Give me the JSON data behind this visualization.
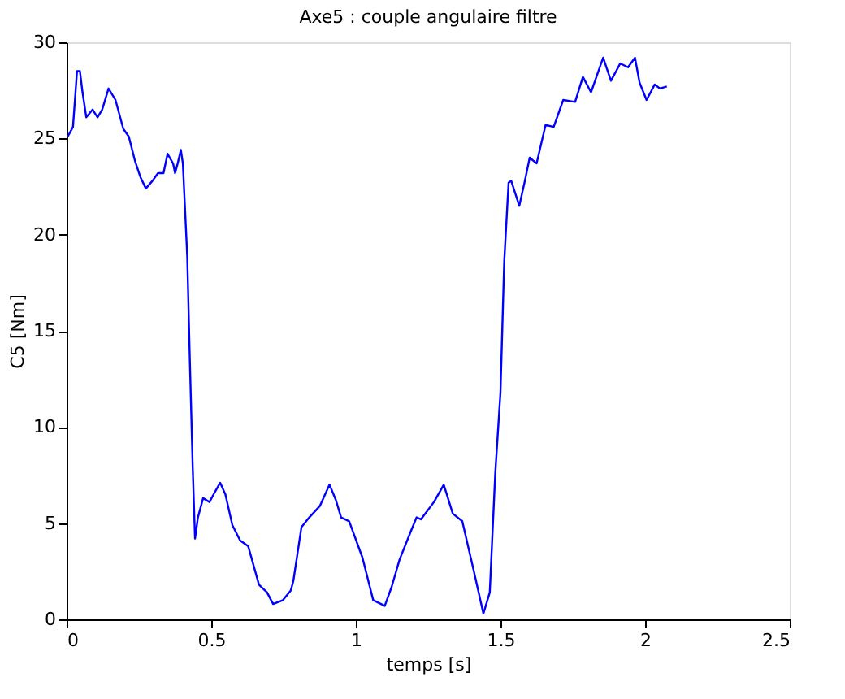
{
  "chart_data": {
    "type": "line",
    "title": "Axe5 : couple angulaire filtre",
    "xlabel": "temps [s]",
    "ylabel": "C5 [Nm]",
    "xlim": [
      0,
      2.5
    ],
    "xticks": [
      0,
      0.5,
      1,
      1.5,
      2,
      2.5
    ],
    "ylim": [
      0,
      30
    ],
    "yticks": [
      0,
      5,
      10,
      15,
      20,
      25,
      30
    ],
    "grid": false,
    "marker": "none",
    "line_style": "solid",
    "x": [
      0.004,
      0.022,
      0.036,
      0.046,
      0.055,
      0.068,
      0.09,
      0.107,
      0.123,
      0.145,
      0.169,
      0.196,
      0.215,
      0.237,
      0.255,
      0.274,
      0.297,
      0.316,
      0.335,
      0.349,
      0.368,
      0.375,
      0.384,
      0.395,
      0.402,
      0.417,
      0.426,
      0.436,
      0.444,
      0.454,
      0.472,
      0.494,
      0.512,
      0.531,
      0.549,
      0.573,
      0.6,
      0.628,
      0.665,
      0.693,
      0.714,
      0.748,
      0.775,
      0.784,
      0.812,
      0.839,
      0.876,
      0.909,
      0.931,
      0.949,
      0.977,
      1.023,
      1.06,
      1.1,
      1.124,
      1.151,
      1.188,
      1.21,
      1.225,
      1.27,
      1.304,
      1.335,
      1.368,
      1.408,
      1.441,
      1.463,
      1.482,
      1.5,
      1.513,
      1.528,
      1.537,
      1.565,
      1.583,
      1.601,
      1.625,
      1.656,
      1.684,
      1.717,
      1.758,
      1.785,
      1.813,
      1.855,
      1.882,
      1.914,
      1.941,
      1.965,
      1.981,
      2.005,
      2.033,
      2.051,
      2.075
    ],
    "series": [
      {
        "color": "#0000ff",
        "values": [
          25.1,
          25.6,
          28.5,
          28.5,
          27.4,
          26.1,
          26.5,
          26.1,
          26.5,
          27.6,
          27.0,
          25.5,
          25.1,
          23.8,
          23.0,
          22.4,
          22.8,
          23.2,
          23.2,
          24.2,
          23.7,
          23.2,
          23.7,
          24.4,
          23.7,
          18.9,
          13.5,
          7.9,
          4.2,
          5.3,
          6.3,
          6.1,
          6.6,
          7.1,
          6.5,
          4.9,
          4.1,
          3.8,
          1.8,
          1.4,
          0.8,
          1.0,
          1.5,
          2.0,
          4.8,
          5.3,
          5.9,
          7.0,
          6.2,
          5.3,
          5.1,
          3.2,
          1.0,
          0.7,
          1.7,
          3.1,
          4.5,
          5.3,
          5.2,
          6.1,
          7.0,
          5.5,
          5.1,
          2.5,
          0.3,
          1.4,
          7.6,
          11.8,
          18.6,
          22.7,
          22.8,
          21.5,
          22.7,
          24.0,
          23.7,
          25.7,
          25.6,
          27.0,
          26.9,
          28.2,
          27.4,
          29.2,
          28.0,
          28.9,
          28.7,
          29.2,
          27.9,
          27.0,
          27.8,
          27.6,
          27.7
        ]
      }
    ]
  }
}
